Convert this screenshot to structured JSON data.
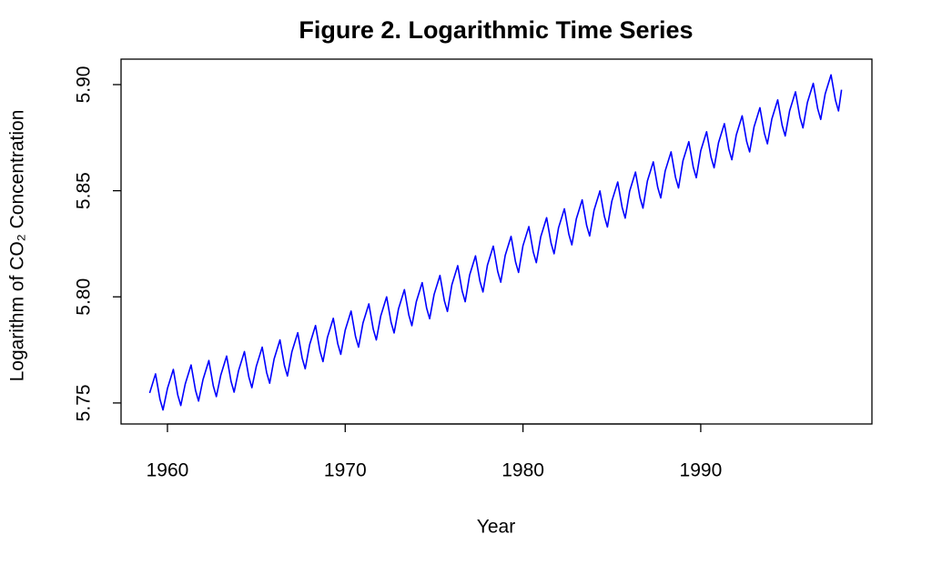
{
  "chart_data": {
    "type": "line",
    "title": "Figure 2. Logarithmic Time Series",
    "xlabel": "Year",
    "ylabel": "Logarithm of CO₂ Concentration",
    "xlim": [
      1957.39,
      1999.63
    ],
    "ylim": [
      5.7401,
      5.912
    ],
    "xticks": [
      1960,
      1970,
      1980,
      1990
    ],
    "yticks": [
      5.75,
      {
        "value": 5.8,
        "label": "5.80"
      },
      5.85,
      {
        "value": 5.9,
        "label": "5.90"
      }
    ],
    "x": [
      1959,
      1959.33,
      1959.58,
      1959.75,
      1960,
      1960.33,
      1960.58,
      1960.75,
      1961,
      1961.33,
      1961.58,
      1961.75,
      1962,
      1962.33,
      1962.58,
      1962.75,
      1963,
      1963.33,
      1963.58,
      1963.75,
      1964,
      1964.33,
      1964.58,
      1964.75,
      1965,
      1965.33,
      1965.58,
      1965.75,
      1966,
      1966.33,
      1966.58,
      1966.75,
      1967,
      1967.33,
      1967.58,
      1967.75,
      1968,
      1968.33,
      1968.58,
      1968.75,
      1969,
      1969.33,
      1969.58,
      1969.75,
      1970,
      1970.33,
      1970.58,
      1970.75,
      1971,
      1971.33,
      1971.58,
      1971.75,
      1972,
      1972.33,
      1972.58,
      1972.75,
      1973,
      1973.33,
      1973.58,
      1973.75,
      1974,
      1974.33,
      1974.58,
      1974.75,
      1975,
      1975.33,
      1975.58,
      1975.75,
      1976,
      1976.33,
      1976.58,
      1976.75,
      1977,
      1977.33,
      1977.58,
      1977.75,
      1978,
      1978.33,
      1978.58,
      1978.75,
      1979,
      1979.33,
      1979.58,
      1979.75,
      1980,
      1980.33,
      1980.58,
      1980.75,
      1981,
      1981.33,
      1981.58,
      1981.75,
      1982,
      1982.33,
      1982.58,
      1982.75,
      1983,
      1983.33,
      1983.58,
      1983.75,
      1984,
      1984.33,
      1984.58,
      1984.75,
      1985,
      1985.33,
      1985.58,
      1985.75,
      1986,
      1986.33,
      1986.58,
      1986.75,
      1987,
      1987.33,
      1987.58,
      1987.75,
      1988,
      1988.33,
      1988.58,
      1988.75,
      1989,
      1989.33,
      1989.58,
      1989.75,
      1990,
      1990.33,
      1990.58,
      1990.75,
      1991,
      1991.33,
      1991.58,
      1991.75,
      1992,
      1992.33,
      1992.58,
      1992.75,
      1993,
      1993.33,
      1993.58,
      1993.75,
      1994,
      1994.33,
      1994.58,
      1994.75,
      1995,
      1995.33,
      1995.58,
      1995.75,
      1996,
      1996.33,
      1996.58,
      1996.75,
      1997,
      1997.33,
      1997.58,
      1997.75,
      1997.92
    ],
    "series": [
      {
        "color": "#0000ff",
        "values": [
          5.7547,
          5.7637,
          5.7517,
          5.7467,
          5.7568,
          5.7658,
          5.7538,
          5.7488,
          5.7589,
          5.7679,
          5.7559,
          5.7509,
          5.761,
          5.77,
          5.758,
          5.753,
          5.7631,
          5.7721,
          5.7601,
          5.7551,
          5.7652,
          5.7742,
          5.7622,
          5.7572,
          5.7673,
          5.7763,
          5.7643,
          5.7593,
          5.7707,
          5.7797,
          5.7677,
          5.7627,
          5.7741,
          5.7831,
          5.7711,
          5.7661,
          5.7775,
          5.7865,
          5.7745,
          5.7695,
          5.7809,
          5.7899,
          5.7779,
          5.7729,
          5.7843,
          5.7933,
          5.7813,
          5.7763,
          5.7877,
          5.7967,
          5.7847,
          5.7797,
          5.791,
          5.8,
          5.788,
          5.783,
          5.7944,
          5.8034,
          5.7914,
          5.7864,
          5.7977,
          5.8067,
          5.7947,
          5.7897,
          5.8011,
          5.8101,
          5.7981,
          5.7931,
          5.8057,
          5.8147,
          5.8027,
          5.7977,
          5.8103,
          5.8193,
          5.8073,
          5.8023,
          5.8149,
          5.8239,
          5.8119,
          5.8069,
          5.8195,
          5.8285,
          5.8165,
          5.8115,
          5.8241,
          5.8331,
          5.8211,
          5.8161,
          5.8283,
          5.8373,
          5.8253,
          5.8203,
          5.8325,
          5.8415,
          5.8295,
          5.8245,
          5.8367,
          5.8457,
          5.8337,
          5.8287,
          5.8409,
          5.8499,
          5.8379,
          5.8329,
          5.8451,
          5.8541,
          5.8421,
          5.8371,
          5.8498,
          5.8588,
          5.8468,
          5.8418,
          5.8546,
          5.8636,
          5.8516,
          5.8466,
          5.8593,
          5.8683,
          5.8563,
          5.8513,
          5.8641,
          5.8731,
          5.8611,
          5.8561,
          5.8688,
          5.8778,
          5.8658,
          5.8608,
          5.8726,
          5.8816,
          5.8696,
          5.8646,
          5.8763,
          5.8853,
          5.8733,
          5.8683,
          5.8801,
          5.8891,
          5.8771,
          5.8721,
          5.8838,
          5.8928,
          5.8808,
          5.8758,
          5.8876,
          5.8966,
          5.8846,
          5.8796,
          5.8916,
          5.9006,
          5.8886,
          5.8836,
          5.8956,
          5.9046,
          5.8926,
          5.8876,
          5.8976
        ]
      }
    ]
  }
}
